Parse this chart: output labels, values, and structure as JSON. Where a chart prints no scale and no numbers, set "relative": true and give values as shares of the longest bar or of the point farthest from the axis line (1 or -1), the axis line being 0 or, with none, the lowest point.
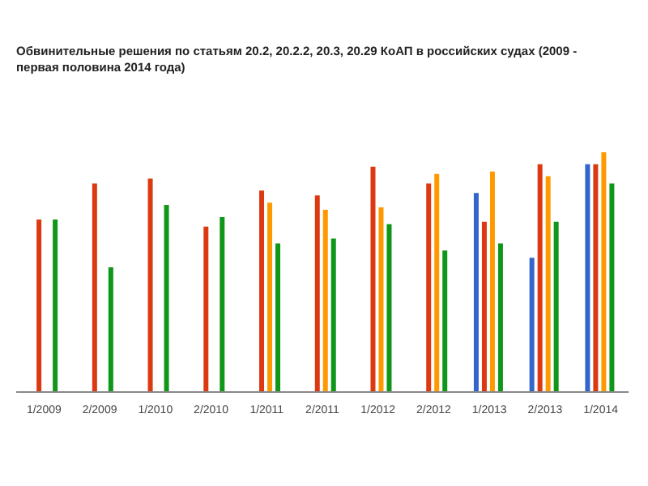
{
  "chart_data": {
    "type": "bar",
    "title": "Обвинительные решения по статьям 20.2, 20.2.2, 20.3, 20.29 КоАП в российских судах (2009 - первая половина 2014 года)",
    "categories": [
      "1/2009",
      "2/2009",
      "1/2010",
      "2/2010",
      "1/2011",
      "2/2011",
      "1/2012",
      "2/2012",
      "1/2013",
      "2/2013",
      "1/2014"
    ],
    "relative": true,
    "series": [
      {
        "color": "#3366cc",
        "values": [
          null,
          null,
          null,
          null,
          null,
          null,
          null,
          null,
          0.83,
          0.56,
          0.95
        ]
      },
      {
        "color": "#dc3912",
        "values": [
          0.72,
          0.87,
          0.89,
          0.69,
          0.84,
          0.82,
          0.94,
          0.87,
          0.71,
          0.95,
          0.95
        ]
      },
      {
        "color": "#ff9900",
        "values": [
          null,
          null,
          null,
          null,
          0.79,
          0.76,
          0.77,
          0.91,
          0.92,
          0.9,
          1
        ]
      },
      {
        "color": "#109618",
        "values": [
          0.72,
          0.52,
          0.78,
          0.73,
          0.62,
          0.64,
          0.7,
          0.59,
          0.62,
          0.71,
          0.87
        ]
      }
    ]
  }
}
